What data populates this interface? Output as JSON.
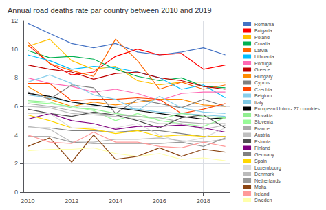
{
  "chart_data": {
    "type": "line",
    "title": "Annual road deaths rate par country between 2010 and 2019",
    "x": [
      2010,
      2011,
      2012,
      2013,
      2014,
      2015,
      2016,
      2017,
      2018,
      2019
    ],
    "series": [
      {
        "name": "Romania",
        "color": "#4472C4",
        "values": [
          11.8,
          11.1,
          10.4,
          10.1,
          10.4,
          9.8,
          9.6,
          9.8,
          10.1,
          9.6
        ]
      },
      {
        "name": "Bulgaria",
        "color": "#FF0000",
        "values": [
          10.3,
          9.0,
          8.2,
          8.4,
          9.5,
          10.0,
          9.6,
          9.7,
          8.6,
          8.9
        ]
      },
      {
        "name": "Poland",
        "color": "#FFC000",
        "values": [
          10.2,
          10.7,
          9.2,
          8.6,
          8.8,
          7.8,
          7.5,
          7.7,
          7.7,
          7.7
        ]
      },
      {
        "name": "Croatia",
        "color": "#00B050",
        "values": [
          9.9,
          9.4,
          9.5,
          9.3,
          8.6,
          8.1,
          7.8,
          8.0,
          7.4,
          7.3
        ]
      },
      {
        "name": "Latvia",
        "color": "#FF6600",
        "values": [
          10.5,
          9.0,
          8.5,
          8.1,
          10.7,
          9.2,
          7.2,
          7.7,
          7.2,
          7.5
        ]
      },
      {
        "name": "Lithuania",
        "color": "#00BFFF",
        "values": [
          9.6,
          9.2,
          8.6,
          8.8,
          8.7,
          8.4,
          8.0,
          7.2,
          7.5,
          6.6
        ]
      },
      {
        "name": "Portugal",
        "color": "#FF69B4",
        "values": [
          8.0,
          7.6,
          7.4,
          7.0,
          7.2,
          6.9,
          6.4,
          6.9,
          7.0,
          7.0
        ]
      },
      {
        "name": "Greece",
        "color": "#C00000",
        "values": [
          8.9,
          8.6,
          8.4,
          7.9,
          8.3,
          8.4,
          8.0,
          7.8,
          7.4,
          7.2
        ]
      },
      {
        "name": "Hungary",
        "color": "#FF8C00",
        "values": [
          7.4,
          6.5,
          6.0,
          6.3,
          6.1,
          6.3,
          6.5,
          6.5,
          6.1,
          6.0
        ]
      },
      {
        "name": "Cyprus",
        "color": "#808080",
        "values": [
          7.0,
          6.5,
          7.5,
          7.3,
          5.5,
          6.5,
          6.2,
          5.9,
          6.5,
          6.0
        ]
      },
      {
        "name": "Czechia",
        "color": "#FF4500",
        "values": [
          7.6,
          7.6,
          6.4,
          6.5,
          6.5,
          6.6,
          6.5,
          5.5,
          5.8,
          6.2
        ]
      },
      {
        "name": "Belgium",
        "color": "#87CEEB",
        "values": [
          7.7,
          8.2,
          7.6,
          6.8,
          6.5,
          5.7,
          6.7,
          5.9,
          5.6,
          5.5
        ]
      },
      {
        "name": "Italy",
        "color": "#7EC8E3",
        "values": [
          6.8,
          6.6,
          6.3,
          6.1,
          5.9,
          5.8,
          5.6,
          5.5,
          5.4,
          5.3
        ]
      },
      {
        "name": "European Union - 27 countries",
        "color": "#000000",
        "values": [
          6.9,
          6.7,
          6.3,
          6.1,
          5.9,
          5.7,
          5.5,
          5.3,
          5.1,
          5.2
        ]
      },
      {
        "name": "Slovakia",
        "color": "#90EE90",
        "values": [
          6.4,
          6.3,
          5.9,
          5.8,
          5.5,
          5.3,
          5.1,
          5.5,
          5.3,
          5.2
        ]
      },
      {
        "name": "Slovenia",
        "color": "#98FB98",
        "values": [
          6.3,
          6.2,
          6.0,
          5.7,
          5.0,
          5.5,
          5.0,
          4.8,
          4.6,
          5.2
        ]
      },
      {
        "name": "France",
        "color": "#AAAAAA",
        "values": [
          6.2,
          6.0,
          5.7,
          5.5,
          5.4,
          5.3,
          5.2,
          4.9,
          4.8,
          4.8
        ]
      },
      {
        "name": "Austria",
        "color": "#C0C0C0",
        "values": [
          6.0,
          5.9,
          5.5,
          5.4,
          5.3,
          5.1,
          4.8,
          4.8,
          4.4,
          4.7
        ]
      },
      {
        "name": "Estonia",
        "color": "#505050",
        "values": [
          5.8,
          5.5,
          5.3,
          5.6,
          5.4,
          5.0,
          4.5,
          5.2,
          5.4,
          4.5
        ]
      },
      {
        "name": "Finland",
        "color": "#800080",
        "values": [
          5.1,
          5.5,
          5.0,
          4.8,
          4.4,
          4.6,
          4.6,
          4.7,
          4.5,
          4.2
        ]
      },
      {
        "name": "Germany",
        "color": "#808080",
        "values": [
          4.5,
          4.5,
          4.3,
          4.3,
          4.2,
          4.3,
          4.3,
          4.1,
          3.9,
          3.9
        ]
      },
      {
        "name": "Spain",
        "color": "#FFD700",
        "values": [
          5.4,
          5.0,
          4.5,
          4.4,
          4.1,
          4.3,
          3.9,
          4.0,
          3.9,
          3.9
        ]
      },
      {
        "name": "Luxembourg",
        "color": "#D8D8D8",
        "values": [
          5.5,
          5.5,
          4.5,
          4.5,
          4.5,
          4.8,
          4.0,
          3.5,
          3.8,
          4.5
        ]
      },
      {
        "name": "Denmark",
        "color": "#BBBBBB",
        "values": [
          4.6,
          4.4,
          3.5,
          3.5,
          3.7,
          3.7,
          3.8,
          3.6,
          3.5,
          3.7
        ]
      },
      {
        "name": "Netherlands",
        "color": "#999999",
        "values": [
          3.9,
          3.9,
          3.5,
          3.4,
          3.4,
          3.4,
          3.4,
          3.5,
          3.2,
          3.8
        ]
      },
      {
        "name": "Malta",
        "color": "#8B4513",
        "values": [
          3.2,
          3.8,
          2.1,
          4.0,
          2.3,
          2.5,
          3.1,
          2.5,
          3.0,
          2.8
        ]
      },
      {
        "name": "Ireland",
        "color": "#FF9999",
        "values": [
          4.0,
          3.5,
          3.4,
          4.2,
          3.5,
          3.5,
          3.2,
          3.1,
          3.5,
          3.2
        ]
      },
      {
        "name": "Sweden",
        "color": "#FFFFAA",
        "values": [
          2.9,
          3.0,
          3.0,
          3.1,
          2.7,
          2.5,
          2.7,
          2.3,
          2.4,
          2.2
        ]
      }
    ],
    "xlim": [
      2009.8,
      2019.2
    ],
    "xticks": [
      2010,
      2012,
      2014,
      2016,
      2018
    ],
    "ylim": [
      0,
      12
    ],
    "yticks": [
      0,
      2,
      4,
      6,
      8,
      10,
      12
    ],
    "grid": true,
    "legend": "right",
    "line_style": "solid"
  }
}
